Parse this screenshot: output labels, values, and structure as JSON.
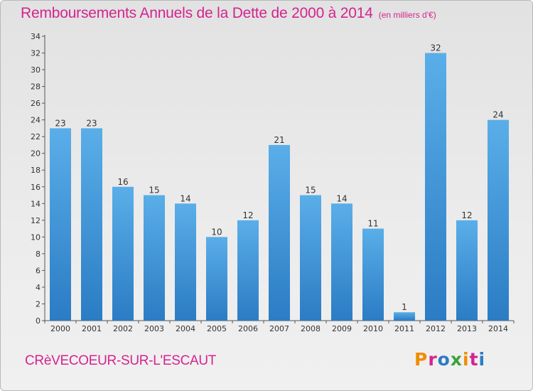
{
  "header": {
    "title": "Remboursements Annuels de la Dette de 2000 à 2014",
    "subtitle": "(en milliers d'€)"
  },
  "footer": {
    "commune": "CRèVECOEUR-SUR-L'ESCAUT",
    "logo_text": "Proxiti"
  },
  "colors": {
    "title": "#d4248e",
    "bar_light": "#5aaee8",
    "bar_dark": "#2b7cc4",
    "logo_letters": [
      "#f08c00",
      "#d4248e",
      "#2b7cc4",
      "#3aa33a",
      "#f08c00",
      "#d4248e",
      "#2b7cc4"
    ]
  },
  "chart_data": {
    "type": "bar",
    "title": "Remboursements Annuels de la Dette de 2000 à 2014",
    "subtitle": "(en milliers d'€)",
    "categories": [
      "2000",
      "2001",
      "2002",
      "2003",
      "2004",
      "2005",
      "2006",
      "2007",
      "2008",
      "2009",
      "2010",
      "2011",
      "2012",
      "2013",
      "2014"
    ],
    "values": [
      23,
      23,
      16,
      15,
      14,
      10,
      12,
      21,
      15,
      14,
      11,
      1,
      32,
      12,
      24
    ],
    "ylim": [
      0,
      34
    ],
    "yticks": [
      0,
      2,
      4,
      6,
      8,
      10,
      12,
      14,
      16,
      18,
      20,
      22,
      24,
      26,
      28,
      30,
      32,
      34
    ],
    "grid": false,
    "data_labels": true
  }
}
